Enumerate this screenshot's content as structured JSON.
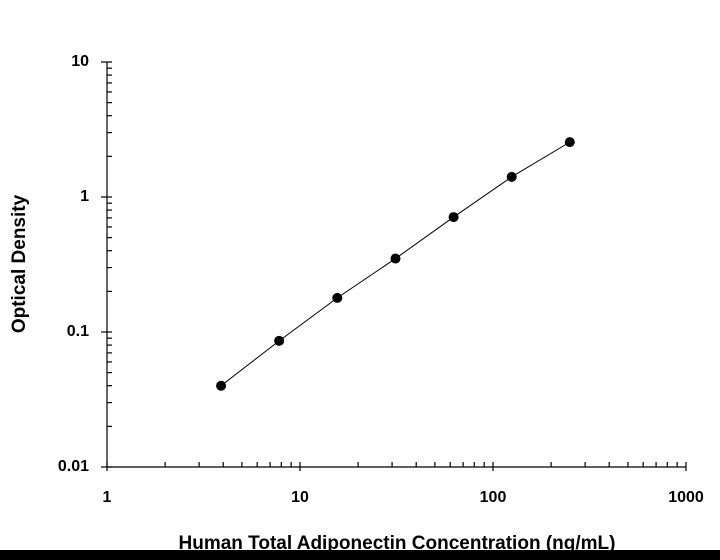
{
  "chart_data": {
    "type": "scatter",
    "x_label": "Human Total Adiponectin Concentration (ng/mL)",
    "y_label": "Optical Density",
    "xscale": "log",
    "yscale": "log",
    "xlim": [
      1,
      1000
    ],
    "xticks": [
      1,
      10,
      100,
      1000
    ],
    "ylim": [
      0.01,
      10
    ],
    "yticks": [
      0.01,
      0.1,
      1,
      10
    ],
    "fit_line": true,
    "series": [
      {
        "color": "#000000",
        "x": [
          3.9,
          7.8,
          15.6,
          31.25,
          62.5,
          125,
          250
        ],
        "values": [
          0.04,
          0.086,
          0.179,
          0.35,
          0.71,
          1.41,
          2.55
        ]
      }
    ]
  }
}
